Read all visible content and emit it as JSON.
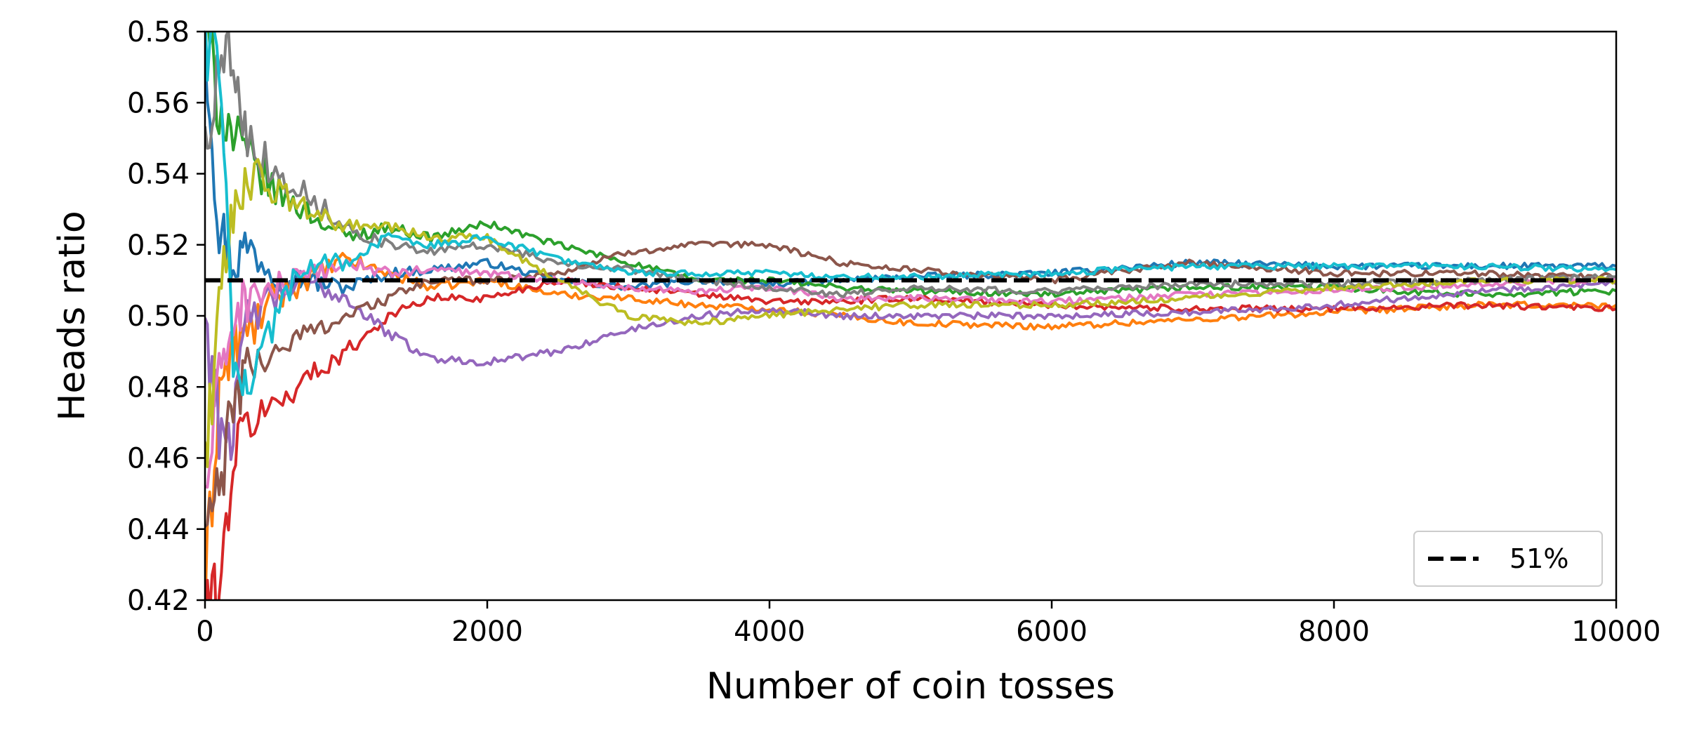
{
  "chart_data": {
    "type": "line",
    "title": "",
    "xlabel": "Number of coin tosses",
    "ylabel": "Heads ratio",
    "xlim": [
      0,
      10000
    ],
    "ylim": [
      0.42,
      0.58
    ],
    "x_ticks": [
      0,
      2000,
      4000,
      6000,
      8000,
      10000
    ],
    "x_tick_labels": [
      "0",
      "2000",
      "4000",
      "6000",
      "8000",
      "10000"
    ],
    "y_ticks": [
      0.42,
      0.44,
      0.46,
      0.48,
      0.5,
      0.52,
      0.54,
      0.56,
      0.58
    ],
    "y_tick_labels": [
      "0.42",
      "0.44",
      "0.46",
      "0.48",
      "0.50",
      "0.52",
      "0.54",
      "0.56",
      "0.58"
    ],
    "grid": false,
    "legend": {
      "position": "lower-right",
      "entries": [
        {
          "label": "51%",
          "color": "#000000",
          "style": "dashed"
        }
      ]
    },
    "reference_line": {
      "y": 0.51,
      "label": "51%",
      "color": "#000000",
      "style": "dashed"
    },
    "x": [
      0,
      100,
      200,
      300,
      500,
      700,
      1000,
      1300,
      1600,
      2000,
      2500,
      3000,
      3500,
      4000,
      4500,
      5000,
      6000,
      7000,
      8000,
      9000,
      10000
    ],
    "series": [
      {
        "color": "#1f77b4",
        "values": [
          0.58,
          0.525,
          0.515,
          0.52,
          0.512,
          0.51,
          0.508,
          0.512,
          0.513,
          0.515,
          0.51,
          0.508,
          0.51,
          0.509,
          0.51,
          0.511,
          0.512,
          0.515,
          0.514,
          0.514,
          0.514
        ]
      },
      {
        "color": "#ff7f0e",
        "values": [
          0.42,
          0.48,
          0.49,
          0.495,
          0.505,
          0.51,
          0.516,
          0.512,
          0.508,
          0.51,
          0.506,
          0.505,
          0.503,
          0.502,
          0.5,
          0.498,
          0.497,
          0.499,
          0.501,
          0.503,
          0.503
        ]
      },
      {
        "color": "#2ca02c",
        "values": [
          0.58,
          0.56,
          0.55,
          0.545,
          0.535,
          0.53,
          0.522,
          0.525,
          0.522,
          0.526,
          0.52,
          0.515,
          0.51,
          0.51,
          0.508,
          0.507,
          0.506,
          0.508,
          0.508,
          0.506,
          0.507
        ]
      },
      {
        "color": "#d62728",
        "values": [
          0.42,
          0.42,
          0.46,
          0.47,
          0.475,
          0.482,
          0.49,
          0.5,
          0.505,
          0.505,
          0.51,
          0.508,
          0.506,
          0.504,
          0.504,
          0.505,
          0.503,
          0.502,
          0.502,
          0.503,
          0.502
        ]
      },
      {
        "color": "#9467bd",
        "values": [
          0.5,
          0.47,
          0.468,
          0.5,
          0.505,
          0.51,
          0.505,
          0.495,
          0.488,
          0.487,
          0.49,
          0.496,
          0.5,
          0.502,
          0.5,
          0.5,
          0.5,
          0.501,
          0.503,
          0.507,
          0.509
        ]
      },
      {
        "color": "#8c564b",
        "values": [
          0.44,
          0.45,
          0.475,
          0.485,
          0.49,
          0.495,
          0.5,
          0.505,
          0.51,
          0.51,
          0.512,
          0.518,
          0.52,
          0.52,
          0.515,
          0.513,
          0.51,
          0.515,
          0.512,
          0.512,
          0.511
        ]
      },
      {
        "color": "#e377c2",
        "values": [
          0.45,
          0.48,
          0.5,
          0.505,
          0.508,
          0.51,
          0.515,
          0.512,
          0.513,
          0.512,
          0.51,
          0.508,
          0.507,
          0.508,
          0.505,
          0.505,
          0.504,
          0.506,
          0.507,
          0.509,
          0.51
        ]
      },
      {
        "color": "#7f7f7f",
        "values": [
          0.55,
          0.57,
          0.575,
          0.55,
          0.54,
          0.535,
          0.525,
          0.52,
          0.518,
          0.52,
          0.515,
          0.513,
          0.51,
          0.508,
          0.506,
          0.508,
          0.507,
          0.509,
          0.509,
          0.51,
          0.511
        ]
      },
      {
        "color": "#bcbd22",
        "values": [
          0.46,
          0.5,
          0.53,
          0.54,
          0.535,
          0.53,
          0.525,
          0.525,
          0.522,
          0.522,
          0.51,
          0.5,
          0.498,
          0.5,
          0.502,
          0.503,
          0.503,
          0.505,
          0.508,
          0.51,
          0.51
        ]
      },
      {
        "color": "#17becf",
        "values": [
          0.58,
          0.57,
          0.49,
          0.48,
          0.5,
          0.515,
          0.515,
          0.522,
          0.52,
          0.522,
          0.516,
          0.512,
          0.512,
          0.512,
          0.511,
          0.511,
          0.512,
          0.514,
          0.514,
          0.514,
          0.513
        ]
      }
    ]
  }
}
